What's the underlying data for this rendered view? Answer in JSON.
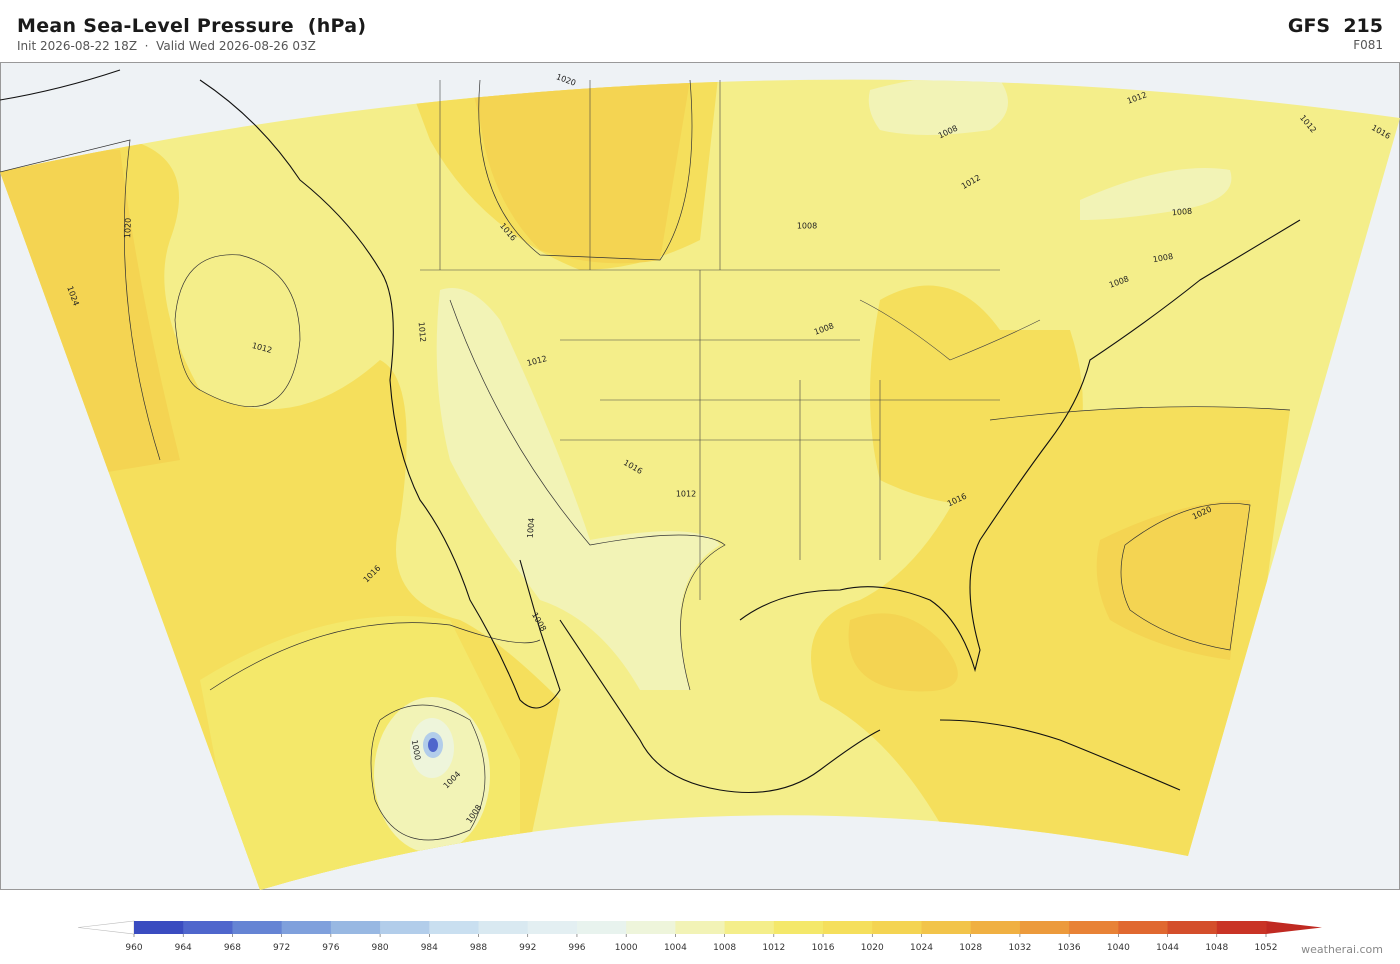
{
  "header": {
    "title": "Mean Sea-Level Pressure  (hPa)",
    "subtitle": "Init 2026-08-22 18Z  ·  Valid Wed 2026-08-26 03Z",
    "model": "GFS  215",
    "forecast_hour": "F081"
  },
  "map": {
    "contour_labels": [
      1020,
      1020,
      1024,
      1012,
      1012,
      1016,
      1012,
      1016,
      1012,
      1004,
      1016,
      1008,
      1000,
      1004,
      1008,
      1008,
      1008,
      1008,
      1012,
      1012,
      1012,
      1016,
      1008,
      1008,
      1008,
      1016,
      1020
    ]
  },
  "colorbar": {
    "ticks": [
      960,
      964,
      968,
      972,
      976,
      980,
      984,
      988,
      992,
      996,
      1000,
      1004,
      1008,
      1012,
      1016,
      1020,
      1024,
      1028,
      1032,
      1036,
      1040,
      1044,
      1048,
      1052
    ],
    "colors": [
      "#3a4cc0",
      "#4f66cc",
      "#6584d4",
      "#7fa0dc",
      "#98b8e2",
      "#b2cdea",
      "#c9dff0",
      "#d9e9f1",
      "#e3eff2",
      "#e8f3ee",
      "#eef5db",
      "#f2f3b6",
      "#f4ee8a",
      "#f4e86a",
      "#f5df5c",
      "#f4d452",
      "#f2c44a",
      "#f0b042",
      "#ec9a3c",
      "#e88236",
      "#e06830",
      "#d44e2b",
      "#c93426"
    ],
    "under_color": "#ffffff",
    "over_color": "#c02a22"
  },
  "watermark": "weatherai.com"
}
